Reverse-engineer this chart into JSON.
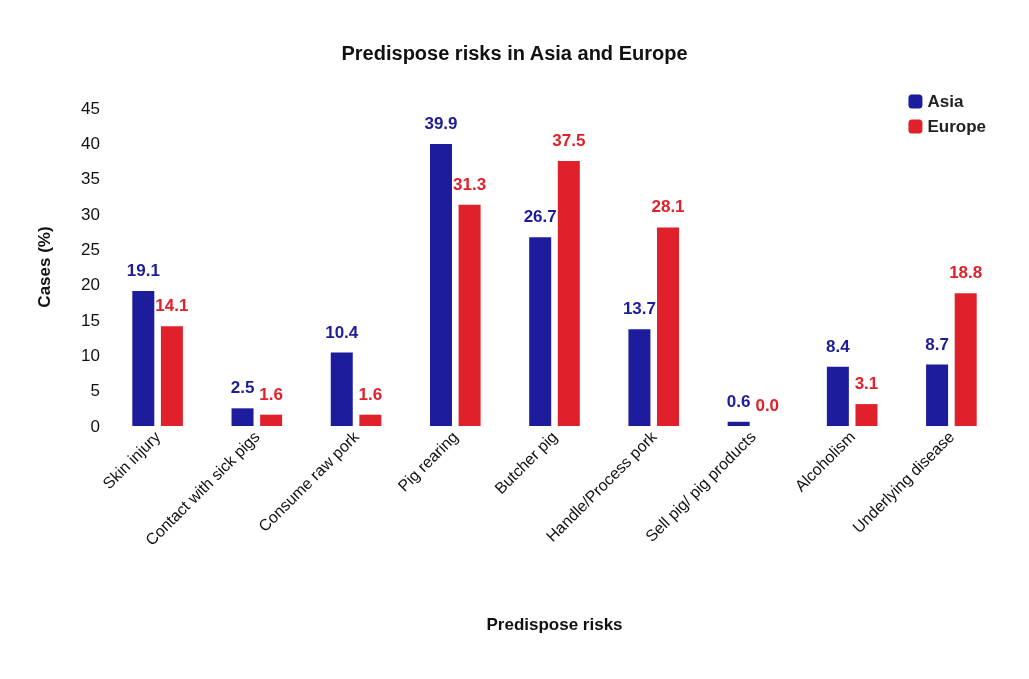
{
  "chart_data": {
    "type": "bar",
    "title": "Predispose risks in Asia and Europe",
    "xlabel": "Predispose risks",
    "ylabel": "Cases (%)",
    "categories": [
      "Skin injury",
      "Contact with sick pigs",
      "Consume raw pork",
      "Pig rearing",
      "Butcher pig",
      "Handle/Process pork",
      "Sell pig/ pig products",
      "Alcoholism",
      "Underlying disease"
    ],
    "series": [
      {
        "name": "Asia",
        "color": "#1c1c9c",
        "values": [
          19.1,
          2.5,
          10.4,
          39.9,
          26.7,
          13.7,
          0.6,
          8.4,
          8.7
        ],
        "value_labels": [
          "19.1",
          "2.5",
          "10.4",
          "39.9",
          "26.7",
          "13.7",
          "0.6",
          "8.4",
          "8.7"
        ]
      },
      {
        "name": "Europe",
        "color": "#e0202a",
        "values": [
          14.1,
          1.6,
          1.6,
          31.3,
          37.5,
          28.1,
          0.0,
          3.1,
          18.8
        ],
        "value_labels": [
          "14.1",
          "1.6",
          "1.6",
          "31.3",
          "37.5",
          "28.1",
          "0.0",
          "3.1",
          "18.8"
        ]
      }
    ],
    "ylim": [
      0,
      45
    ],
    "yticks": [
      0,
      5,
      10,
      15,
      20,
      25,
      30,
      35,
      40,
      45
    ],
    "grid": false,
    "legend": "top right"
  }
}
